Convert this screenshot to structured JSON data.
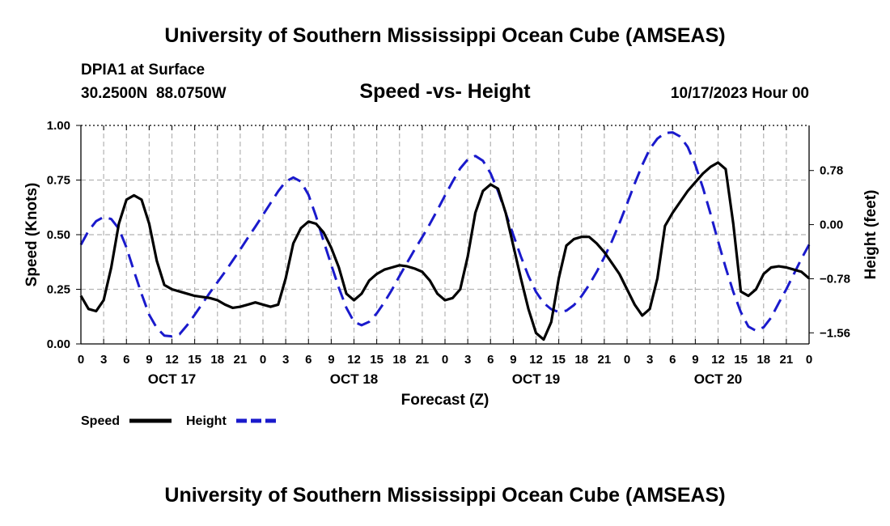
{
  "header": {
    "title_top": "University of Southern Mississippi Ocean Cube (AMSEAS)",
    "title_bottom": "University of Southern Mississippi Ocean Cube (AMSEAS)",
    "station": "DPIA1 at Surface",
    "coords": "30.2500N  88.0750W",
    "subtitle": "Speed -vs- Height",
    "datetime": "10/17/2023 Hour 00"
  },
  "colors": {
    "speed": "#000000",
    "height": "#1a1acc",
    "grid": "#b3b3b3"
  },
  "chart_data": {
    "type": "line",
    "title": "Speed -vs- Height",
    "xlabel": "Forecast (Z)",
    "ylabel": "Speed (Knots)",
    "y2label": "Height (feet)",
    "x_range_hours": [
      0,
      96
    ],
    "x_tick_step_hours": 3,
    "x_tick_labels": [
      "0",
      "3",
      "6",
      "9",
      "12",
      "15",
      "18",
      "21",
      "0",
      "3",
      "6",
      "9",
      "12",
      "15",
      "18",
      "21",
      "0",
      "3",
      "6",
      "9",
      "12",
      "15",
      "18",
      "21",
      "0",
      "3",
      "6",
      "9",
      "12",
      "15",
      "18",
      "21",
      "0"
    ],
    "date_labels": [
      {
        "label": "OCT 17",
        "hour": 12
      },
      {
        "label": "OCT 18",
        "hour": 36
      },
      {
        "label": "OCT 19",
        "hour": 60
      },
      {
        "label": "OCT 20",
        "hour": 84
      }
    ],
    "ylim": [
      0,
      1
    ],
    "y_ticks": [
      0,
      0.25,
      0.5,
      0.75,
      1
    ],
    "y_tick_labels": [
      "0.00",
      "0.25",
      "0.50",
      "0.75",
      "1.00"
    ],
    "y2lim": [
      -1.72,
      1.43
    ],
    "y2_ticks": [
      -1.56,
      -0.78,
      0,
      0.78
    ],
    "y2_tick_labels": [
      "-1.56",
      "-0.78",
      "0.00",
      "0.78"
    ],
    "legend": [
      {
        "name": "Speed",
        "style": "solid"
      },
      {
        "name": "Height",
        "style": "dashed"
      }
    ],
    "series": [
      {
        "name": "Speed",
        "axis": "left",
        "x": [
          0,
          1,
          2,
          3,
          4,
          5,
          6,
          7,
          8,
          9,
          10,
          11,
          12,
          13,
          14,
          15,
          16,
          17,
          18,
          19,
          20,
          21,
          22,
          23,
          24,
          25,
          26,
          27,
          28,
          29,
          30,
          31,
          32,
          33,
          34,
          35,
          36,
          37,
          38,
          39,
          40,
          41,
          42,
          43,
          44,
          45,
          46,
          47,
          48,
          49,
          50,
          51,
          52,
          53,
          54,
          55,
          56,
          57,
          58,
          59,
          60,
          61,
          62,
          63,
          64,
          65,
          66,
          67,
          68,
          69,
          70,
          71,
          72,
          73,
          74,
          75,
          76,
          77,
          78,
          79,
          80,
          81,
          82,
          83,
          84,
          85,
          86,
          87,
          88,
          89,
          90,
          91,
          92,
          93,
          94,
          95,
          96
        ],
        "values": [
          0.22,
          0.16,
          0.15,
          0.2,
          0.35,
          0.55,
          0.66,
          0.68,
          0.66,
          0.55,
          0.38,
          0.27,
          0.25,
          0.24,
          0.23,
          0.22,
          0.215,
          0.21,
          0.2,
          0.18,
          0.165,
          0.17,
          0.18,
          0.19,
          0.18,
          0.17,
          0.18,
          0.3,
          0.46,
          0.53,
          0.56,
          0.55,
          0.51,
          0.44,
          0.35,
          0.23,
          0.2,
          0.23,
          0.29,
          0.32,
          0.34,
          0.35,
          0.36,
          0.355,
          0.345,
          0.33,
          0.29,
          0.23,
          0.2,
          0.21,
          0.25,
          0.4,
          0.6,
          0.7,
          0.73,
          0.71,
          0.6,
          0.45,
          0.3,
          0.16,
          0.05,
          0.02,
          0.1,
          0.3,
          0.45,
          0.48,
          0.49,
          0.49,
          0.46,
          0.42,
          0.37,
          0.32,
          0.25,
          0.18,
          0.13,
          0.16,
          0.3,
          0.54,
          0.6,
          0.65,
          0.7,
          0.74,
          0.78,
          0.81,
          0.83,
          0.8,
          0.55,
          0.24,
          0.22,
          0.25,
          0.32,
          0.35,
          0.355,
          0.35,
          0.34,
          0.33,
          0.3
        ]
      },
      {
        "name": "Height",
        "axis": "right",
        "x": [
          0,
          1,
          2,
          3,
          4,
          5,
          6,
          7,
          8,
          9,
          10,
          11,
          12,
          13,
          14,
          15,
          16,
          17,
          18,
          19,
          20,
          21,
          22,
          23,
          24,
          25,
          26,
          27,
          28,
          29,
          30,
          31,
          32,
          33,
          34,
          35,
          36,
          37,
          38,
          39,
          40,
          41,
          42,
          43,
          44,
          45,
          46,
          47,
          48,
          49,
          50,
          51,
          52,
          53,
          54,
          55,
          56,
          57,
          58,
          59,
          60,
          61,
          62,
          63,
          64,
          65,
          66,
          67,
          68,
          69,
          70,
          71,
          72,
          73,
          74,
          75,
          76,
          77,
          78,
          79,
          80,
          81,
          82,
          83,
          84,
          85,
          86,
          87,
          88,
          89,
          90,
          91,
          92,
          93,
          94,
          95,
          96
        ],
        "values": [
          -0.29,
          -0.09,
          0.05,
          0.11,
          0.08,
          -0.06,
          -0.33,
          -0.67,
          -1.0,
          -1.3,
          -1.49,
          -1.6,
          -1.61,
          -1.58,
          -1.45,
          -1.3,
          -1.14,
          -0.98,
          -0.83,
          -0.68,
          -0.52,
          -0.36,
          -0.19,
          -0.03,
          0.14,
          0.31,
          0.48,
          0.62,
          0.68,
          0.62,
          0.43,
          0.12,
          -0.24,
          -0.58,
          -0.91,
          -1.2,
          -1.4,
          -1.45,
          -1.4,
          -1.28,
          -1.12,
          -0.94,
          -0.74,
          -0.55,
          -0.36,
          -0.18,
          0.01,
          0.21,
          0.42,
          0.62,
          0.81,
          0.94,
          0.99,
          0.92,
          0.74,
          0.48,
          0.17,
          -0.15,
          -0.46,
          -0.74,
          -0.97,
          -1.13,
          -1.22,
          -1.26,
          -1.24,
          -1.16,
          -1.03,
          -0.87,
          -0.68,
          -0.47,
          -0.24,
          0.02,
          0.3,
          0.59,
          0.86,
          1.09,
          1.24,
          1.32,
          1.33,
          1.27,
          1.12,
          0.86,
          0.53,
          0.16,
          -0.24,
          -0.62,
          -0.97,
          -1.26,
          -1.47,
          -1.53,
          -1.48,
          -1.34,
          -1.13,
          -0.93,
          -0.71,
          -0.49,
          -0.29
        ]
      }
    ]
  }
}
